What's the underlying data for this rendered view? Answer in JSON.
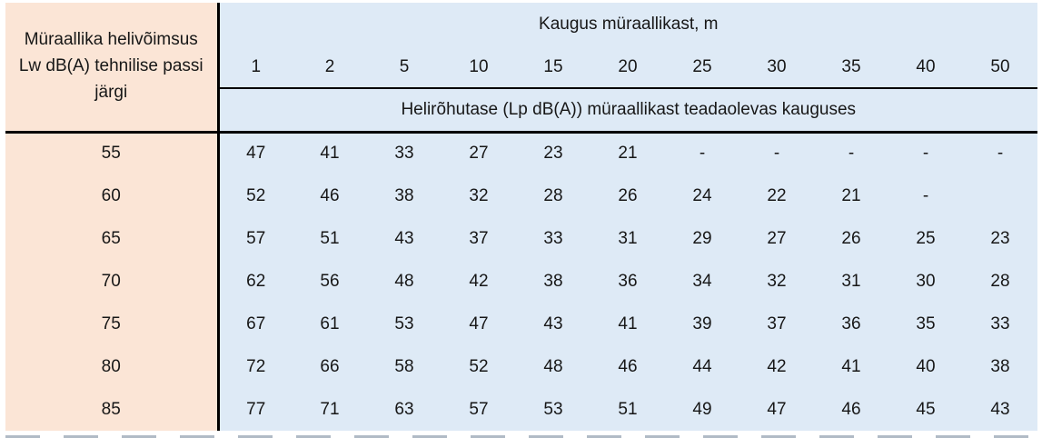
{
  "table": {
    "corner_header": "Müraallika helivõimsus Lw dB(A) tehnilise passi järgi",
    "distance_header": "Kaugus müraallikast, m",
    "distances": [
      "1",
      "2",
      "5",
      "10",
      "15",
      "20",
      "25",
      "30",
      "35",
      "40",
      "50"
    ],
    "subheader": "Helirõhutase (Lp dB(A)) müraallikast teadaolevas kauguses",
    "rows": [
      {
        "lw": "55",
        "values": [
          "47",
          "41",
          "33",
          "27",
          "23",
          "21",
          "-",
          "-",
          "-",
          "-",
          "-"
        ]
      },
      {
        "lw": "60",
        "values": [
          "52",
          "46",
          "38",
          "32",
          "28",
          "26",
          "24",
          "22",
          "21",
          "-",
          ""
        ]
      },
      {
        "lw": "65",
        "values": [
          "57",
          "51",
          "43",
          "37",
          "33",
          "31",
          "29",
          "27",
          "26",
          "25",
          "23"
        ]
      },
      {
        "lw": "70",
        "values": [
          "62",
          "56",
          "48",
          "42",
          "38",
          "36",
          "34",
          "32",
          "31",
          "30",
          "28"
        ]
      },
      {
        "lw": "75",
        "values": [
          "67",
          "61",
          "53",
          "47",
          "43",
          "41",
          "39",
          "37",
          "36",
          "35",
          "33"
        ]
      },
      {
        "lw": "80",
        "values": [
          "72",
          "66",
          "58",
          "52",
          "48",
          "46",
          "44",
          "42",
          "41",
          "40",
          "38"
        ]
      },
      {
        "lw": "85",
        "values": [
          "77",
          "71",
          "63",
          "57",
          "53",
          "51",
          "49",
          "47",
          "46",
          "45",
          "43"
        ]
      }
    ],
    "colors": {
      "left_column_bg": "#fbe5d6",
      "data_bg": "#deeaf6",
      "border": "#000000",
      "text": "#171717"
    }
  }
}
